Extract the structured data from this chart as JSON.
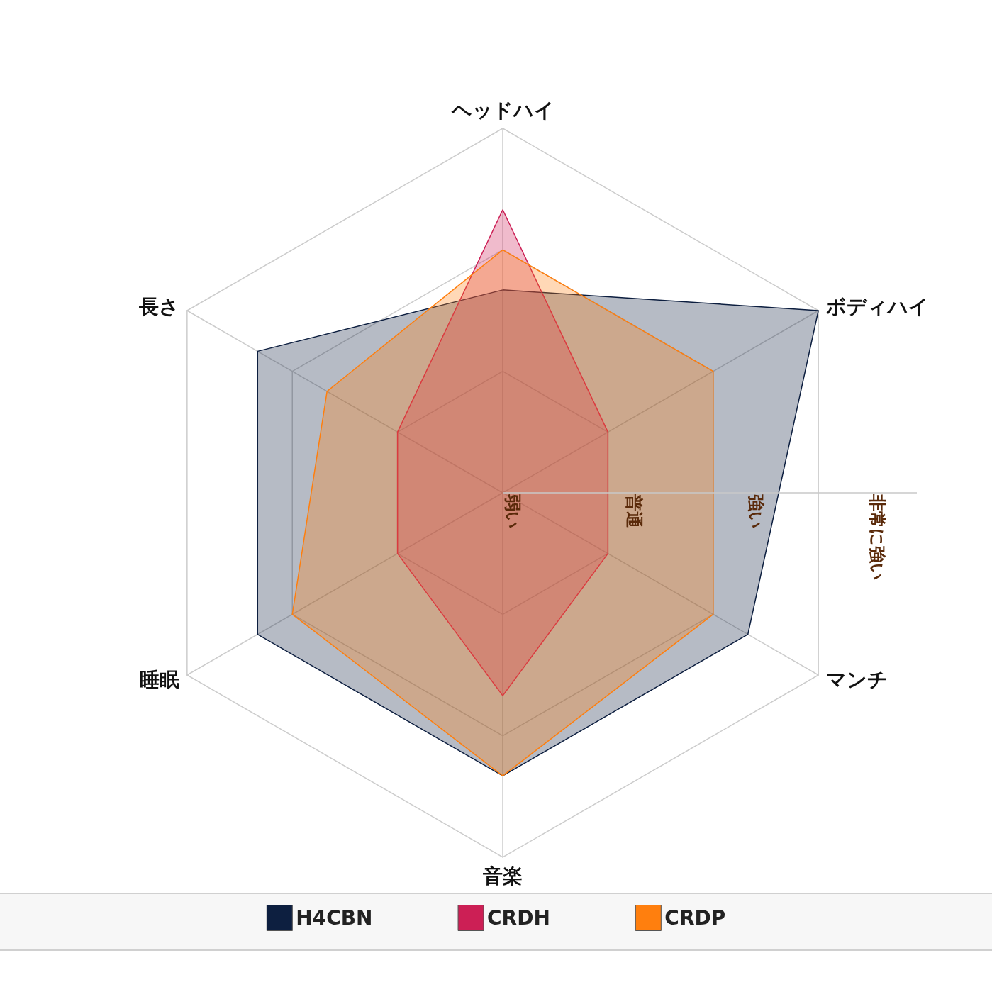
{
  "chart_data": {
    "type": "radar",
    "categories": [
      "ヘッドハイ",
      "ボディハイ",
      "マンチ",
      "音楽",
      "睡眠",
      "長さ"
    ],
    "series": [
      {
        "name": "H4CBN",
        "color": "#0d1f40",
        "values": [
          1.67,
          3,
          2.33,
          2.33,
          2.33,
          2.33
        ]
      },
      {
        "name": "CRDH",
        "color": "#cc1f55",
        "values": [
          2.33,
          1,
          1,
          1.67,
          1,
          1
        ]
      },
      {
        "name": "CRDP",
        "color": "#ff7f0e",
        "values": [
          2,
          2,
          2,
          2.33,
          2,
          1.67
        ]
      }
    ],
    "ylim": [
      0,
      3
    ],
    "yticks": [
      {
        "value": 0,
        "label": "弱い"
      },
      {
        "value": 1,
        "label": "普通"
      },
      {
        "value": 2,
        "label": "強い"
      },
      {
        "value": 3,
        "label": "非常に強い"
      }
    ],
    "grid": true,
    "legend": "bottom"
  }
}
